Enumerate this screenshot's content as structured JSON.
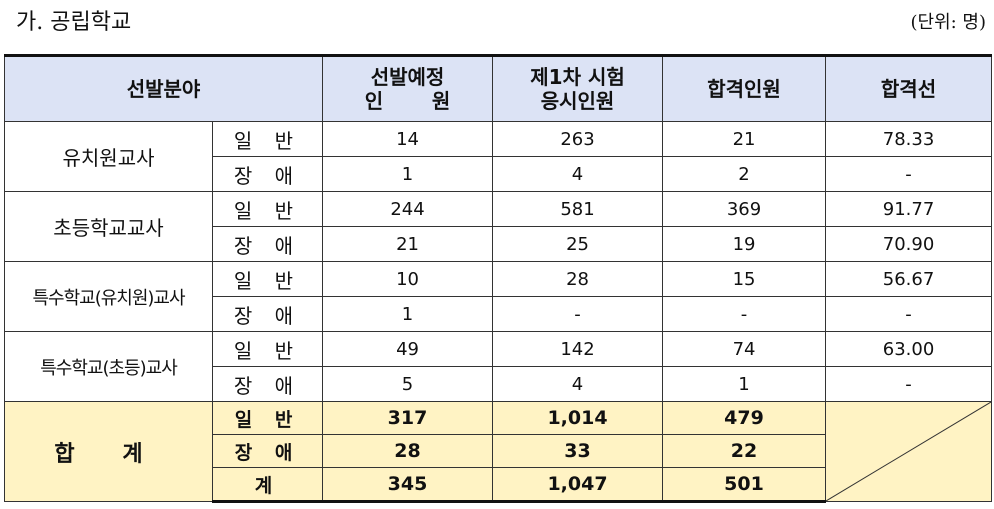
{
  "title": "가. 공립학교",
  "unit": "(단위: 명)",
  "header": {
    "field": "선발분야",
    "planned_line1": "선발예정",
    "planned_line2": "인       원",
    "examinees_line1": "제1차 시험",
    "examinees_line2": "응시인원",
    "passed": "합격인원",
    "cutoff": "합격선"
  },
  "rows": [
    {
      "category": "유치원교사",
      "general": {
        "label": "일 반",
        "planned": "14",
        "examinees": "263",
        "passed": "21",
        "cutoff": "78.33"
      },
      "disabled": {
        "label": "장 애",
        "planned": "1",
        "examinees": "4",
        "passed": "2",
        "cutoff": "-"
      }
    },
    {
      "category": "초등학교교사",
      "general": {
        "label": "일 반",
        "planned": "244",
        "examinees": "581",
        "passed": "369",
        "cutoff": "91.77"
      },
      "disabled": {
        "label": "장 애",
        "planned": "21",
        "examinees": "25",
        "passed": "19",
        "cutoff": "70.90"
      }
    },
    {
      "category": "특수학교(유치원)교사",
      "general": {
        "label": "일 반",
        "planned": "10",
        "examinees": "28",
        "passed": "15",
        "cutoff": "56.67"
      },
      "disabled": {
        "label": "장 애",
        "planned": "1",
        "examinees": "-",
        "passed": "-",
        "cutoff": "-"
      }
    },
    {
      "category": "특수학교(초등)교사",
      "general": {
        "label": "일 반",
        "planned": "49",
        "examinees": "142",
        "passed": "74",
        "cutoff": "63.00"
      },
      "disabled": {
        "label": "장 애",
        "planned": "5",
        "examinees": "4",
        "passed": "1",
        "cutoff": "-"
      }
    }
  ],
  "total": {
    "category": "합 계",
    "general": {
      "label": "일 반",
      "planned": "317",
      "examinees": "1,014",
      "passed": "479"
    },
    "disabled": {
      "label": "장 애",
      "planned": "28",
      "examinees": "33",
      "passed": "22"
    },
    "sum": {
      "label": "계",
      "planned": "345",
      "examinees": "1,047",
      "passed": "501"
    }
  }
}
